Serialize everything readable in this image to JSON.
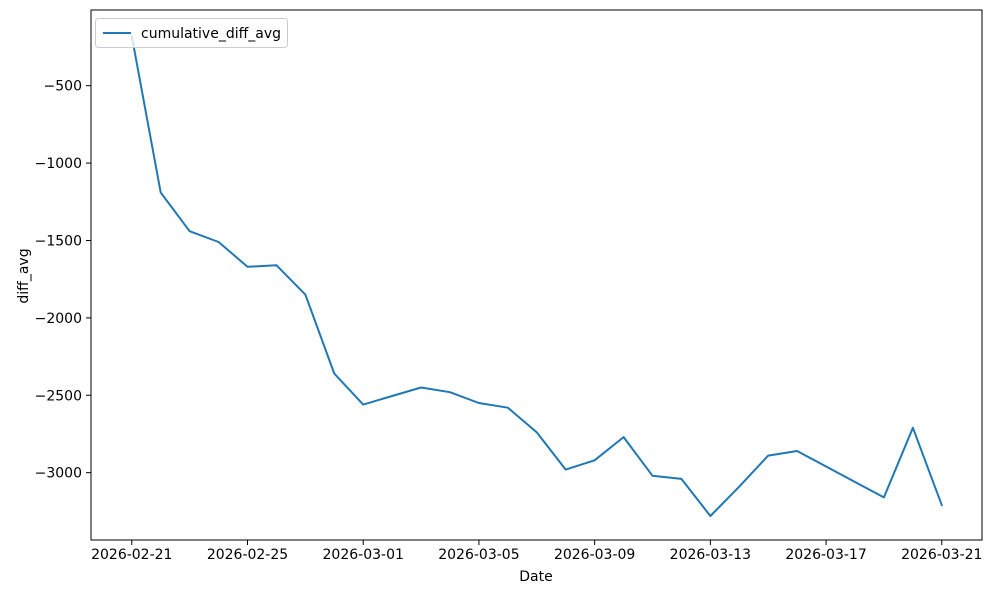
{
  "chart_data": {
    "type": "line",
    "title": "",
    "xlabel": "Date",
    "ylabel": "diff_avg",
    "grid": false,
    "legend_position": "upper-left",
    "line_color": "#1f77b4",
    "series": [
      {
        "name": "cumulative_diff_avg",
        "color": "#1f77b4",
        "values": [
          -180,
          -1190,
          -1440,
          -1510,
          -1670,
          -1660,
          -1850,
          -2360,
          -2560,
          -2505,
          -2450,
          -2480,
          -2550,
          -2580,
          -2740,
          -2980,
          -2920,
          -2770,
          -3020,
          -3040,
          -3280,
          -3090,
          -2890,
          -2860,
          -2960,
          -3060,
          -3160,
          -2710,
          -3210
        ]
      }
    ],
    "x": [
      "2026-02-21",
      "2026-02-22",
      "2026-02-23",
      "2026-02-24",
      "2026-02-25",
      "2026-02-26",
      "2026-02-27",
      "2026-02-28",
      "2026-03-01",
      "2026-03-02",
      "2026-03-03",
      "2026-03-04",
      "2026-03-05",
      "2026-03-06",
      "2026-03-07",
      "2026-03-08",
      "2026-03-09",
      "2026-03-10",
      "2026-03-11",
      "2026-03-12",
      "2026-03-13",
      "2026-03-14",
      "2026-03-15",
      "2026-03-16",
      "2026-03-17",
      "2026-03-18",
      "2026-03-19",
      "2026-03-20",
      "2026-03-21"
    ],
    "x_tick_days": [
      0,
      4,
      8,
      12,
      16,
      20,
      24,
      28
    ],
    "x_tick_labels": [
      "2026-02-21",
      "2026-02-25",
      "2026-03-01",
      "2026-03-05",
      "2026-03-09",
      "2026-03-13",
      "2026-03-17",
      "2026-03-21"
    ],
    "y_ticks": [
      -500,
      -1000,
      -1500,
      -2000,
      -2500,
      -3000
    ],
    "y_tick_labels": [
      "−500",
      "−1000",
      "−1500",
      "−2000",
      "−2500",
      "−3000"
    ],
    "xlim_days": [
      -1.41,
      29.39
    ],
    "ylim": [
      -3435,
      -11
    ]
  }
}
